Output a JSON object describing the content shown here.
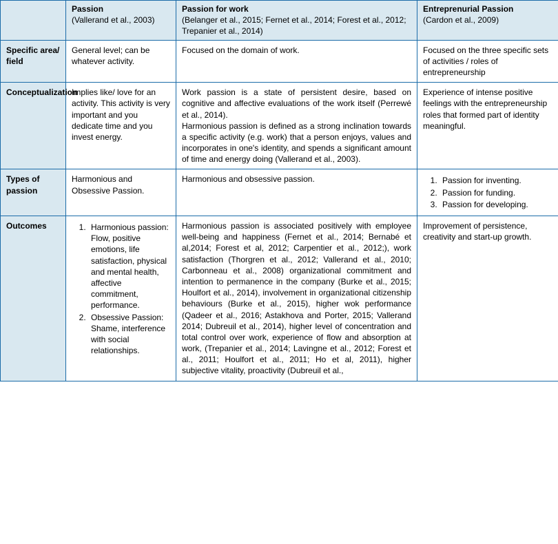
{
  "table": {
    "colors": {
      "border": "#1a6ba8",
      "headerBg": "#d9e8f0",
      "bodyBg": "#ffffff",
      "text": "#000000"
    },
    "columns": {
      "passion": {
        "title": "Passion",
        "cite": "(Vallerand et al., 2003)"
      },
      "work": {
        "title": "Passion for work",
        "cite": "(Belanger et al., 2015; Fernet et al., 2014; Forest et al., 2012; Trepanier et al., 2014)"
      },
      "entre": {
        "title": "Entreprenurial Passion",
        "cite": " (Cardon et al., 2009)"
      }
    },
    "rows": {
      "field": {
        "label": "Specific area/ field",
        "passion": "General level; can be whatever activity.",
        "work": "Focused on the domain of work.",
        "entre": "Focused on the three specific sets of activities / roles of entrepreneurship"
      },
      "concept": {
        "label": "Conceptualization",
        "passion": "Implies like/ love for an activity. This activity is very important and you dedicate time and you invest energy.",
        "work_p1": "Work passion is a state of persistent desire, based on cognitive and affective evaluations of the work itself (Perrewé et al., 2014).",
        "work_p2": "Harmonious passion is defined as a strong inclination towards a specific activity (e.g. work) that a person enjoys, values and incorporates in one's identity, and spends a significant amount of time and energy doing (Vallerand et al., 2003).",
        "entre": "Experience of intense positive feelings with the entrepreneurship roles that formed part of identity meaningful."
      },
      "types": {
        "label": "Types of passion",
        "passion": "Harmonious and Obsessive Passion.",
        "work": "Harmonious and obsessive passion.",
        "entre_items": {
          "i1": "Passion for inventing.",
          "i2": "Passion for funding.",
          "i3": "Passion for developing."
        }
      },
      "outcomes": {
        "label": "Outcomes",
        "passion_items": {
          "i1a": "Harmonious passion:",
          "i1b": "Flow, positive emotions, life satisfaction, physical and mental health, affective commitment, performance.",
          "i2a": "Obsessive Passion:",
          "i2b": "Shame, interference with social relationships."
        },
        "work": "Harmonious passion is associated positively with employee well-being and happiness (Fernet et al., 2014; Bernabé et al,2014; Forest et al, 2012; Carpentier et al., 2012;), work satisfaction (Thorgren et al., 2012; Vallerand et al., 2010; Carbonneau et al., 2008) organizational commitment and intention to permanence in the company (Burke et al., 2015; Houlfort et al., 2014), involvement in organizational citizenship behaviours (Burke et al., 2015), higher wok performance (Qadeer et al., 2016; Astakhova and Porter, 2015; Vallerand 2014; Dubreuil et al., 2014), higher level of concentration and total control over work, experience of flow and absorption at work, (Trepanier et al., 2014; Lavingne et al., 2012; Forest et al., 2011; Houlfort et al., 2011; Ho et al, 2011), higher subjective vitality, proactivity (Dubreuil et al.,",
        "entre": "Improvement of persistence, creativity and start-up growth."
      }
    }
  }
}
